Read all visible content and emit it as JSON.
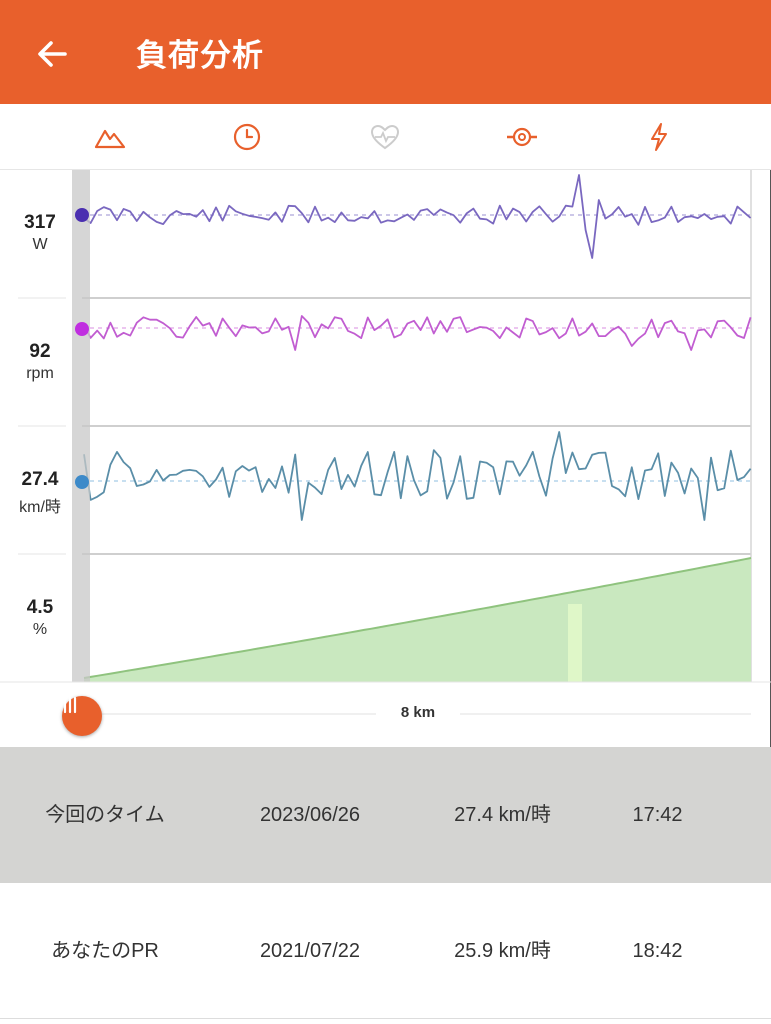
{
  "header": {
    "title": "負荷分析",
    "background_color": "#e8602c",
    "back_icon": "arrow-left-icon"
  },
  "tabs": [
    {
      "name": "elevation",
      "icon": "mountain-icon",
      "active": true
    },
    {
      "name": "time",
      "icon": "clock-icon",
      "active": true
    },
    {
      "name": "heart-rate",
      "icon": "heart-pulse-icon",
      "active": false
    },
    {
      "name": "cadence",
      "icon": "cadence-icon",
      "active": true
    },
    {
      "name": "power",
      "icon": "lightning-icon",
      "active": true
    }
  ],
  "metrics": {
    "power": {
      "value": "317",
      "unit": "W",
      "color": "#6a4fb5"
    },
    "cadence": {
      "value": "92",
      "unit": "rpm",
      "color": "#c04ccf"
    },
    "speed": {
      "value": "27.4",
      "unit": "km/時",
      "color": "#3d8ac9"
    },
    "grade": {
      "value": "4.5",
      "unit": "%",
      "color": "#8fcf7f"
    }
  },
  "scrubber": {
    "distance_label": "8 km"
  },
  "comparison": {
    "current": {
      "label": "今回のタイム",
      "date": "2023/06/26",
      "speed": "27.4 km/時",
      "time": "17:42"
    },
    "pr": {
      "label": "あなたのPR",
      "date": "2021/07/22",
      "speed": "25.9 km/時",
      "time": "18:42"
    }
  },
  "colors": {
    "accent": "#e8602c",
    "heart_icon_inactive": "#cccccc",
    "current_row_bg": "#d4d4d2"
  }
}
